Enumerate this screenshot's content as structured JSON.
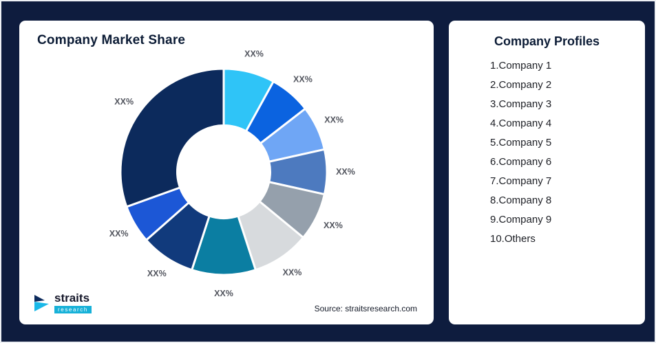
{
  "canvas": {
    "background": "#0e1c3e"
  },
  "chart_card": {
    "title": "Company Market Share",
    "source": "Source: straitsresearch.com"
  },
  "logo": {
    "text": "straits",
    "subtext": "research"
  },
  "profiles_card": {
    "title": "Company Profiles",
    "items": [
      "1.Company 1",
      "2.Company 2",
      "3.Company 3",
      "4.Company 4",
      "5.Company 5",
      "6.Company 6",
      "7.Company 7",
      "8.Company 8",
      "9.Company 9",
      "10.Others"
    ]
  },
  "chart_data": {
    "type": "pie",
    "subtype": "donut",
    "title": "Company Market Share",
    "categories": [
      "Company 1",
      "Company 2",
      "Company 3",
      "Company 4",
      "Company 5",
      "Company 6",
      "Company 7",
      "Company 8",
      "Company 9",
      "Others"
    ],
    "values": [
      8,
      6.5,
      7,
      7,
      7.5,
      9,
      10,
      8.5,
      6,
      30.5
    ],
    "labels": [
      "XX%",
      "XX%",
      "XX%",
      "XX%",
      "XX%",
      "XX%",
      "XX%",
      "XX%",
      "XX%",
      "XX%"
    ],
    "colors": [
      "#2fc4f7",
      "#0b63e0",
      "#6fa6f5",
      "#4d7abf",
      "#95a0ac",
      "#d7dadd",
      "#0b7ea2",
      "#113a7c",
      "#1c57d6",
      "#0c2a5c"
    ],
    "start_angle": 0,
    "direction": "clockwise",
    "inner_radius_ratio": 0.45,
    "legend": "none",
    "data_labels": "outside",
    "label_color": "#53565f",
    "segment_gap_color": "#ffffff"
  }
}
